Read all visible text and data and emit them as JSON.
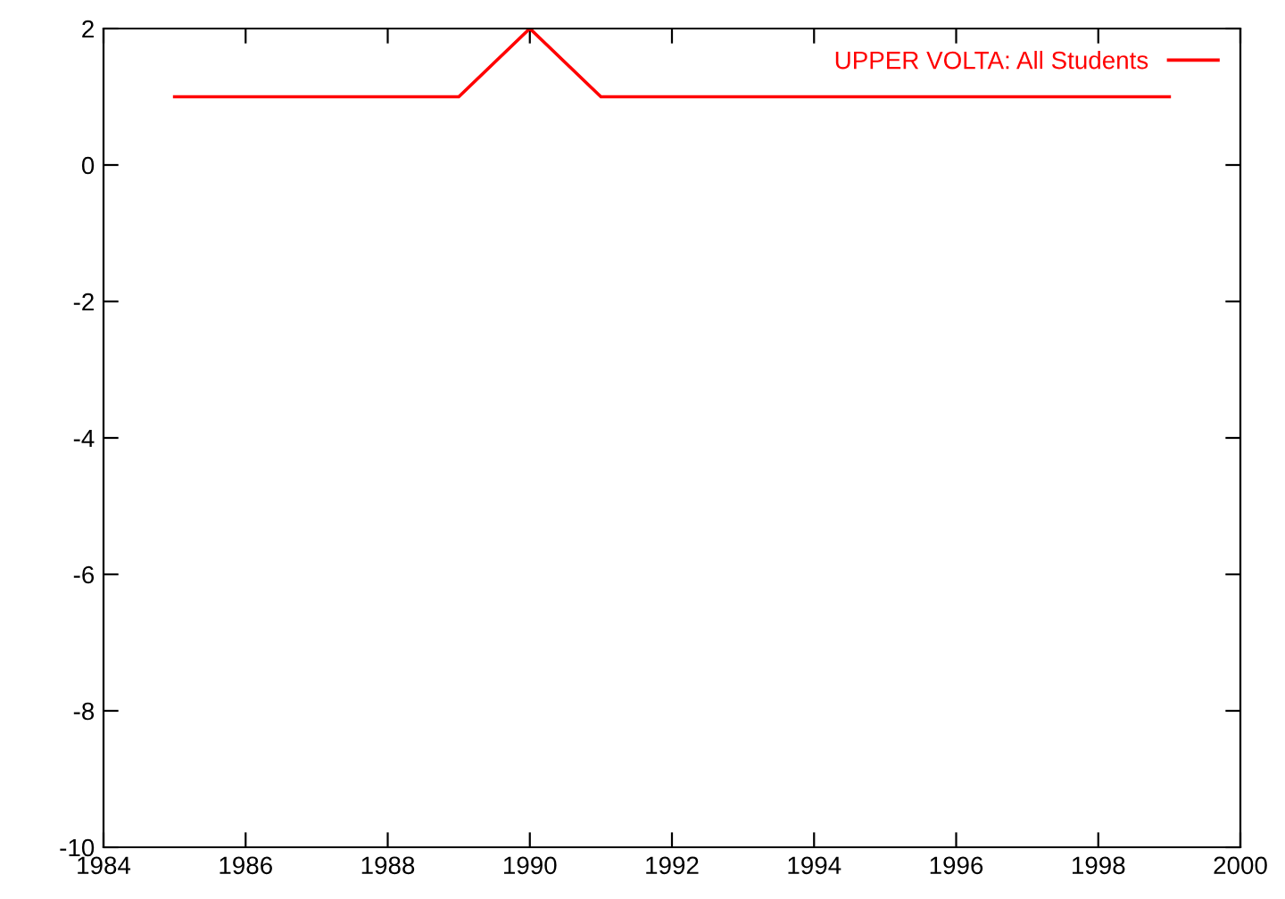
{
  "chart_data": {
    "type": "line",
    "x": [
      1985,
      1986,
      1987,
      1988,
      1989,
      1990,
      1991,
      1992,
      1993,
      1994,
      1995,
      1996,
      1997,
      1998,
      1999
    ],
    "series": [
      {
        "name": "UPPER VOLTA: All Students",
        "color": "#ff0000",
        "values": [
          1,
          1,
          1,
          1,
          1,
          2,
          1,
          1,
          1,
          1,
          1,
          1,
          1,
          1,
          1
        ]
      }
    ],
    "xlim": [
      1984,
      2000
    ],
    "xticks": [
      1984,
      1986,
      1988,
      1990,
      1992,
      1994,
      1996,
      1998,
      2000
    ],
    "ylim": [
      -10,
      2
    ],
    "yticks": [
      -10,
      -8,
      -6,
      -4,
      -2,
      0,
      2
    ],
    "grid": false,
    "legend": "top right",
    "marker": "none",
    "line_style": "solid"
  }
}
